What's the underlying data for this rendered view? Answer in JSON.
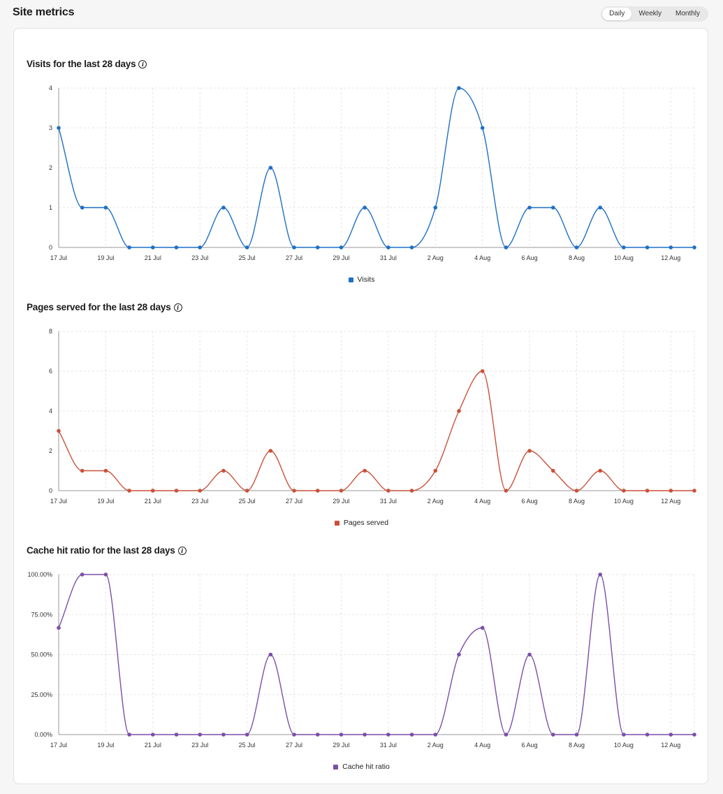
{
  "header": {
    "title": "Site metrics",
    "tabs": [
      {
        "label": "Daily",
        "active": true
      },
      {
        "label": "Weekly",
        "active": false
      },
      {
        "label": "Monthly",
        "active": false
      }
    ]
  },
  "chart_data": [
    {
      "type": "line",
      "title": "Visits for the last 28 days",
      "x": [
        "17 Jul",
        "18 Jul",
        "19 Jul",
        "20 Jul",
        "21 Jul",
        "22 Jul",
        "23 Jul",
        "24 Jul",
        "25 Jul",
        "26 Jul",
        "27 Jul",
        "28 Jul",
        "29 Jul",
        "30 Jul",
        "31 Jul",
        "1 Aug",
        "2 Aug",
        "3 Aug",
        "4 Aug",
        "5 Aug",
        "6 Aug",
        "7 Aug",
        "8 Aug",
        "9 Aug",
        "10 Aug",
        "11 Aug",
        "12 Aug",
        "13 Aug"
      ],
      "xticks": [
        "17 Jul",
        "19 Jul",
        "21 Jul",
        "23 Jul",
        "25 Jul",
        "27 Jul",
        "29 Jul",
        "31 Jul",
        "2 Aug",
        "4 Aug",
        "6 Aug",
        "8 Aug",
        "10 Aug",
        "12 Aug"
      ],
      "yticks": [
        "0",
        "1",
        "2",
        "3",
        "4"
      ],
      "ylim": [
        0,
        4
      ],
      "series": [
        {
          "name": "Visits",
          "color": "#1f6fc5",
          "values": [
            3,
            1,
            1,
            0,
            0,
            0,
            0,
            1,
            0,
            2,
            0,
            0,
            0,
            1,
            0,
            0,
            1,
            4,
            3,
            0,
            1,
            1,
            0,
            1,
            0,
            0,
            0,
            0
          ]
        }
      ],
      "grid": true,
      "legend": "bottom"
    },
    {
      "type": "line",
      "title": "Pages served for the last 28 days",
      "x": [
        "17 Jul",
        "18 Jul",
        "19 Jul",
        "20 Jul",
        "21 Jul",
        "22 Jul",
        "23 Jul",
        "24 Jul",
        "25 Jul",
        "26 Jul",
        "27 Jul",
        "28 Jul",
        "29 Jul",
        "30 Jul",
        "31 Jul",
        "1 Aug",
        "2 Aug",
        "3 Aug",
        "4 Aug",
        "5 Aug",
        "6 Aug",
        "7 Aug",
        "8 Aug",
        "9 Aug",
        "10 Aug",
        "11 Aug",
        "12 Aug",
        "13 Aug"
      ],
      "xticks": [
        "17 Jul",
        "19 Jul",
        "21 Jul",
        "23 Jul",
        "25 Jul",
        "27 Jul",
        "29 Jul",
        "31 Jul",
        "2 Aug",
        "4 Aug",
        "6 Aug",
        "8 Aug",
        "10 Aug",
        "12 Aug"
      ],
      "yticks": [
        "0",
        "2",
        "4",
        "6",
        "8"
      ],
      "ylim": [
        0,
        8
      ],
      "series": [
        {
          "name": "Pages served",
          "color": "#c9513a",
          "values": [
            3,
            1,
            1,
            0,
            0,
            0,
            0,
            1,
            0,
            2,
            0,
            0,
            0,
            1,
            0,
            0,
            1,
            4,
            6,
            0,
            2,
            1,
            0,
            1,
            0,
            0,
            0,
            0
          ]
        }
      ],
      "grid": true,
      "legend": "bottom"
    },
    {
      "type": "line",
      "title": "Cache hit ratio for the last 28 days",
      "x": [
        "17 Jul",
        "18 Jul",
        "19 Jul",
        "20 Jul",
        "21 Jul",
        "22 Jul",
        "23 Jul",
        "24 Jul",
        "25 Jul",
        "26 Jul",
        "27 Jul",
        "28 Jul",
        "29 Jul",
        "30 Jul",
        "31 Jul",
        "1 Aug",
        "2 Aug",
        "3 Aug",
        "4 Aug",
        "5 Aug",
        "6 Aug",
        "7 Aug",
        "8 Aug",
        "9 Aug",
        "10 Aug",
        "11 Aug",
        "12 Aug",
        "13 Aug"
      ],
      "xticks": [
        "17 Jul",
        "19 Jul",
        "21 Jul",
        "23 Jul",
        "25 Jul",
        "27 Jul",
        "29 Jul",
        "31 Jul",
        "2 Aug",
        "4 Aug",
        "6 Aug",
        "8 Aug",
        "10 Aug",
        "12 Aug"
      ],
      "yticks": [
        "0.00%",
        "25.00%",
        "50.00%",
        "75.00%",
        "100.00%"
      ],
      "ylim": [
        0,
        100
      ],
      "series": [
        {
          "name": "Cache hit ratio",
          "color": "#7b4fa8",
          "values": [
            66.7,
            100,
            100,
            0,
            0,
            0,
            0,
            0,
            0,
            50,
            0,
            0,
            0,
            0,
            0,
            0,
            0,
            50,
            66.7,
            0,
            50,
            0,
            0,
            100,
            0,
            0,
            0,
            0
          ]
        }
      ],
      "grid": true,
      "legend": "bottom"
    }
  ]
}
